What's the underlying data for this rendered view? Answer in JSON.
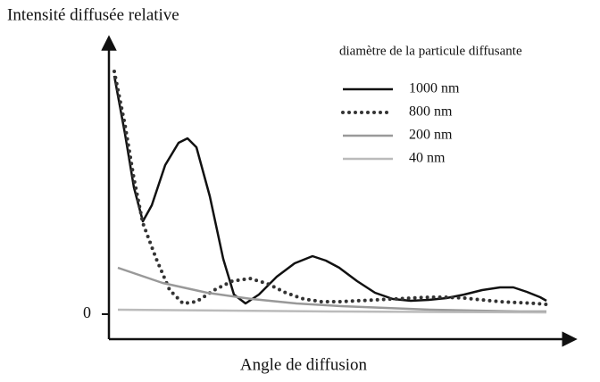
{
  "chart_data": {
    "type": "line",
    "title": "Intensité diffusée relative",
    "xlabel": "Angle de diffusion",
    "legend_title": "diamètre de la particule diffusante",
    "legend": "top-right",
    "xlim": [
      0,
      518
    ],
    "ylim": [
      -28,
      307
    ],
    "yticks": [
      0
    ],
    "series": [
      {
        "name": "1000 nm",
        "color": "#111111",
        "dash": "solid",
        "x": [
          6,
          18,
          28,
          38,
          48,
          63,
          78,
          88,
          98,
          113,
          128,
          140,
          153,
          168,
          188,
          208,
          228,
          243,
          258,
          278,
          298,
          318,
          338,
          358,
          378,
          398,
          418,
          438,
          453,
          468,
          483,
          490
        ],
        "values": [
          267,
          202,
          142,
          104,
          122,
          167,
          192,
          197,
          187,
          132,
          62,
          22,
          12,
          22,
          42,
          57,
          65,
          60,
          52,
          37,
          24,
          17,
          15,
          16,
          18,
          22,
          27,
          30,
          30,
          25,
          19,
          15
        ]
      },
      {
        "name": "800 nm",
        "color": "#333333",
        "dash": "dotted",
        "x": [
          6,
          18,
          28,
          38,
          53,
          68,
          83,
          98,
          118,
          138,
          158,
          178,
          198,
          218,
          238,
          258,
          278,
          298,
          318,
          338,
          358,
          378,
          398,
          418,
          438,
          458,
          478,
          490
        ],
        "values": [
          272,
          212,
          152,
          102,
          62,
          27,
          12,
          14,
          27,
          37,
          40,
          34,
          24,
          17,
          14,
          14,
          15,
          16,
          17,
          18,
          19,
          19,
          18,
          16,
          14,
          13,
          12,
          11
        ]
      },
      {
        "name": "200 nm",
        "color": "#999999",
        "dash": "solid",
        "x": [
          10,
          60,
          110,
          160,
          210,
          260,
          310,
          360,
          410,
          460,
          490
        ],
        "values": [
          52,
          35,
          24,
          17,
          12,
          9,
          7,
          5,
          4,
          3,
          3
        ]
      },
      {
        "name": "40 nm",
        "color": "#bbbbbb",
        "dash": "solid",
        "x": [
          10,
          250,
          490
        ],
        "values": [
          5,
          3,
          2
        ]
      }
    ]
  }
}
